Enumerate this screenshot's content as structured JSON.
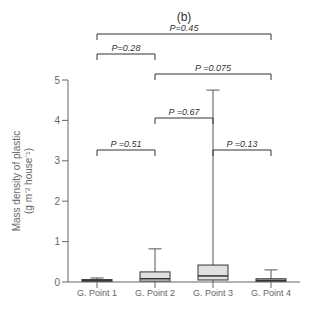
{
  "chart_data": {
    "type": "box",
    "title": "(b)",
    "y_label": "Mass density of plastic\n(g m⁻² house⁻¹)",
    "categories": [
      "G. Point 1",
      "G. Point 2",
      "G. Point 3",
      "G. Point 4"
    ],
    "boxes": [
      {
        "med": 0.03,
        "q1": 0.01,
        "q3": 0.06,
        "whislo": 0.0,
        "whishi": 0.1
      },
      {
        "med": 0.08,
        "q1": 0.02,
        "q3": 0.25,
        "whislo": 0.0,
        "whishi": 0.82
      },
      {
        "med": 0.15,
        "q1": 0.05,
        "q3": 0.42,
        "whislo": 0.0,
        "whishi": 4.75
      },
      {
        "med": 0.04,
        "q1": 0.01,
        "q3": 0.08,
        "whislo": 0.0,
        "whishi": 0.3
      }
    ],
    "color": "#e0e0e0",
    "ylim": [
      0,
      5
    ],
    "yticks": [
      0,
      1,
      2,
      3,
      4,
      5
    ],
    "annotations": [
      {
        "text": "P=0.45",
        "from": "G. Point 1",
        "to": "G. Point 4",
        "outside": true
      },
      {
        "text": "P=0.28",
        "from": "G. Point 1",
        "to": "G. Point 2",
        "outside": true
      },
      {
        "text": "P =0.075",
        "from": "G. Point 2",
        "to": "G. Point 4",
        "outside": true
      },
      {
        "text": "P =0.51",
        "from": "G. Point 1",
        "to": "G. Point 2",
        "outside": false
      },
      {
        "text": "P =0.67",
        "from": "G. Point 2",
        "to": "G. Point 3",
        "outside": false
      },
      {
        "text": "P =0.13",
        "from": "G. Point 3",
        "to": "G. Point 4",
        "outside": false
      }
    ]
  }
}
